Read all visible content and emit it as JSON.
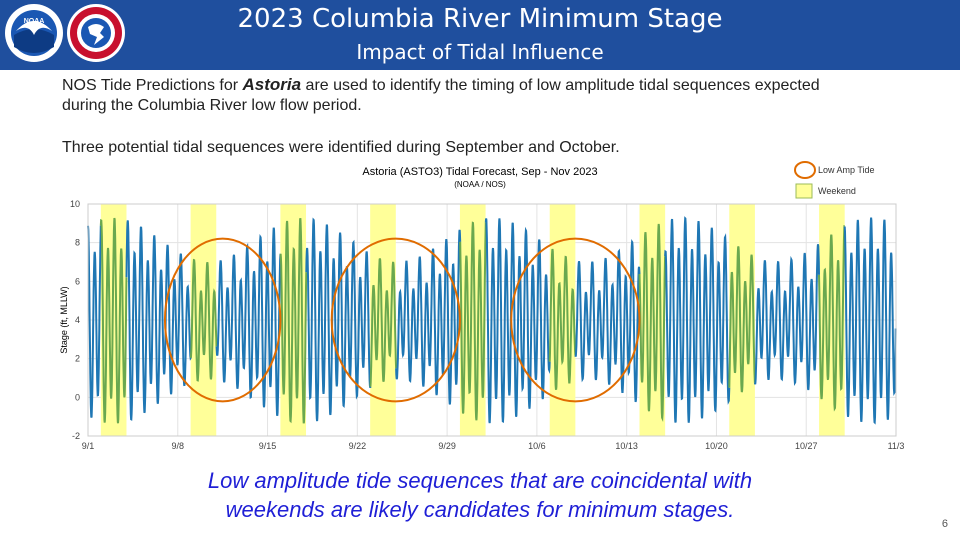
{
  "header": {
    "title": "2023 Columbia River Minimum Stage",
    "subtitle": "Impact of Tidal Influence",
    "logo_left": "NOAA",
    "logo_right": "NATIONAL WEATHER SERVICE"
  },
  "body": {
    "line1_pre": "NOS Tide Predictions for ",
    "line1_bold": "Astoria",
    "line1_post": " are used to identify the timing of low amplitude tidal sequences expected",
    "line2": "during the Columbia River low flow period.",
    "line3": "Three potential tidal sequences were identified during September and October."
  },
  "footer": {
    "line1": "Low amplitude tide sequences that are coincidental with",
    "line2": "weekends are likely candidates for minimum stages."
  },
  "page_number": "6",
  "colors": {
    "header_bg": "#1f4f9e",
    "tide_line": "#1f77b4",
    "weekend_line": "#6aa84f",
    "weekend_band": "#ffff99",
    "circle": "#e06c00",
    "footer_text": "#1f1fd6"
  },
  "chart_data": {
    "type": "line",
    "title": "Astoria (ASTO3) Tidal Forecast, Sep - Nov 2023",
    "subtitle": "(NOAA / NOS)",
    "ylabel": "Stage (ft, MLLW)",
    "xlabel": "",
    "ylim": [
      -2,
      10
    ],
    "yticks": [
      -2,
      0,
      2,
      4,
      6,
      8,
      10
    ],
    "x_range": [
      "9/1",
      "11/3"
    ],
    "xticks": [
      "9/1",
      "9/8",
      "9/15",
      "9/22",
      "9/29",
      "10/6",
      "10/13",
      "10/20",
      "10/27",
      "11/3"
    ],
    "grid": true,
    "legend_position": "top-right",
    "legend": [
      {
        "name": "Low Amp Tide",
        "marker": "circle"
      },
      {
        "name": "Weekend",
        "marker": "band"
      }
    ],
    "weekends": [
      [
        "9/2",
        "9/3"
      ],
      [
        "9/9",
        "9/10"
      ],
      [
        "9/16",
        "9/17"
      ],
      [
        "9/23",
        "9/24"
      ],
      [
        "9/30",
        "10/1"
      ],
      [
        "10/7",
        "10/8"
      ],
      [
        "10/14",
        "10/15"
      ],
      [
        "10/21",
        "10/22"
      ],
      [
        "10/28",
        "10/29"
      ]
    ],
    "low_amp_periods": [
      {
        "start": "9/7",
        "end": "9/16"
      },
      {
        "start": "9/20",
        "end": "9/30"
      },
      {
        "start": "10/4",
        "end": "10/14"
      }
    ],
    "series": [
      {
        "name": "Tide",
        "semidiurnal_high_ft": [
          7.0,
          8.5
        ],
        "semidiurnal_low_ft": [
          -1.2,
          4.5
        ]
      }
    ]
  }
}
